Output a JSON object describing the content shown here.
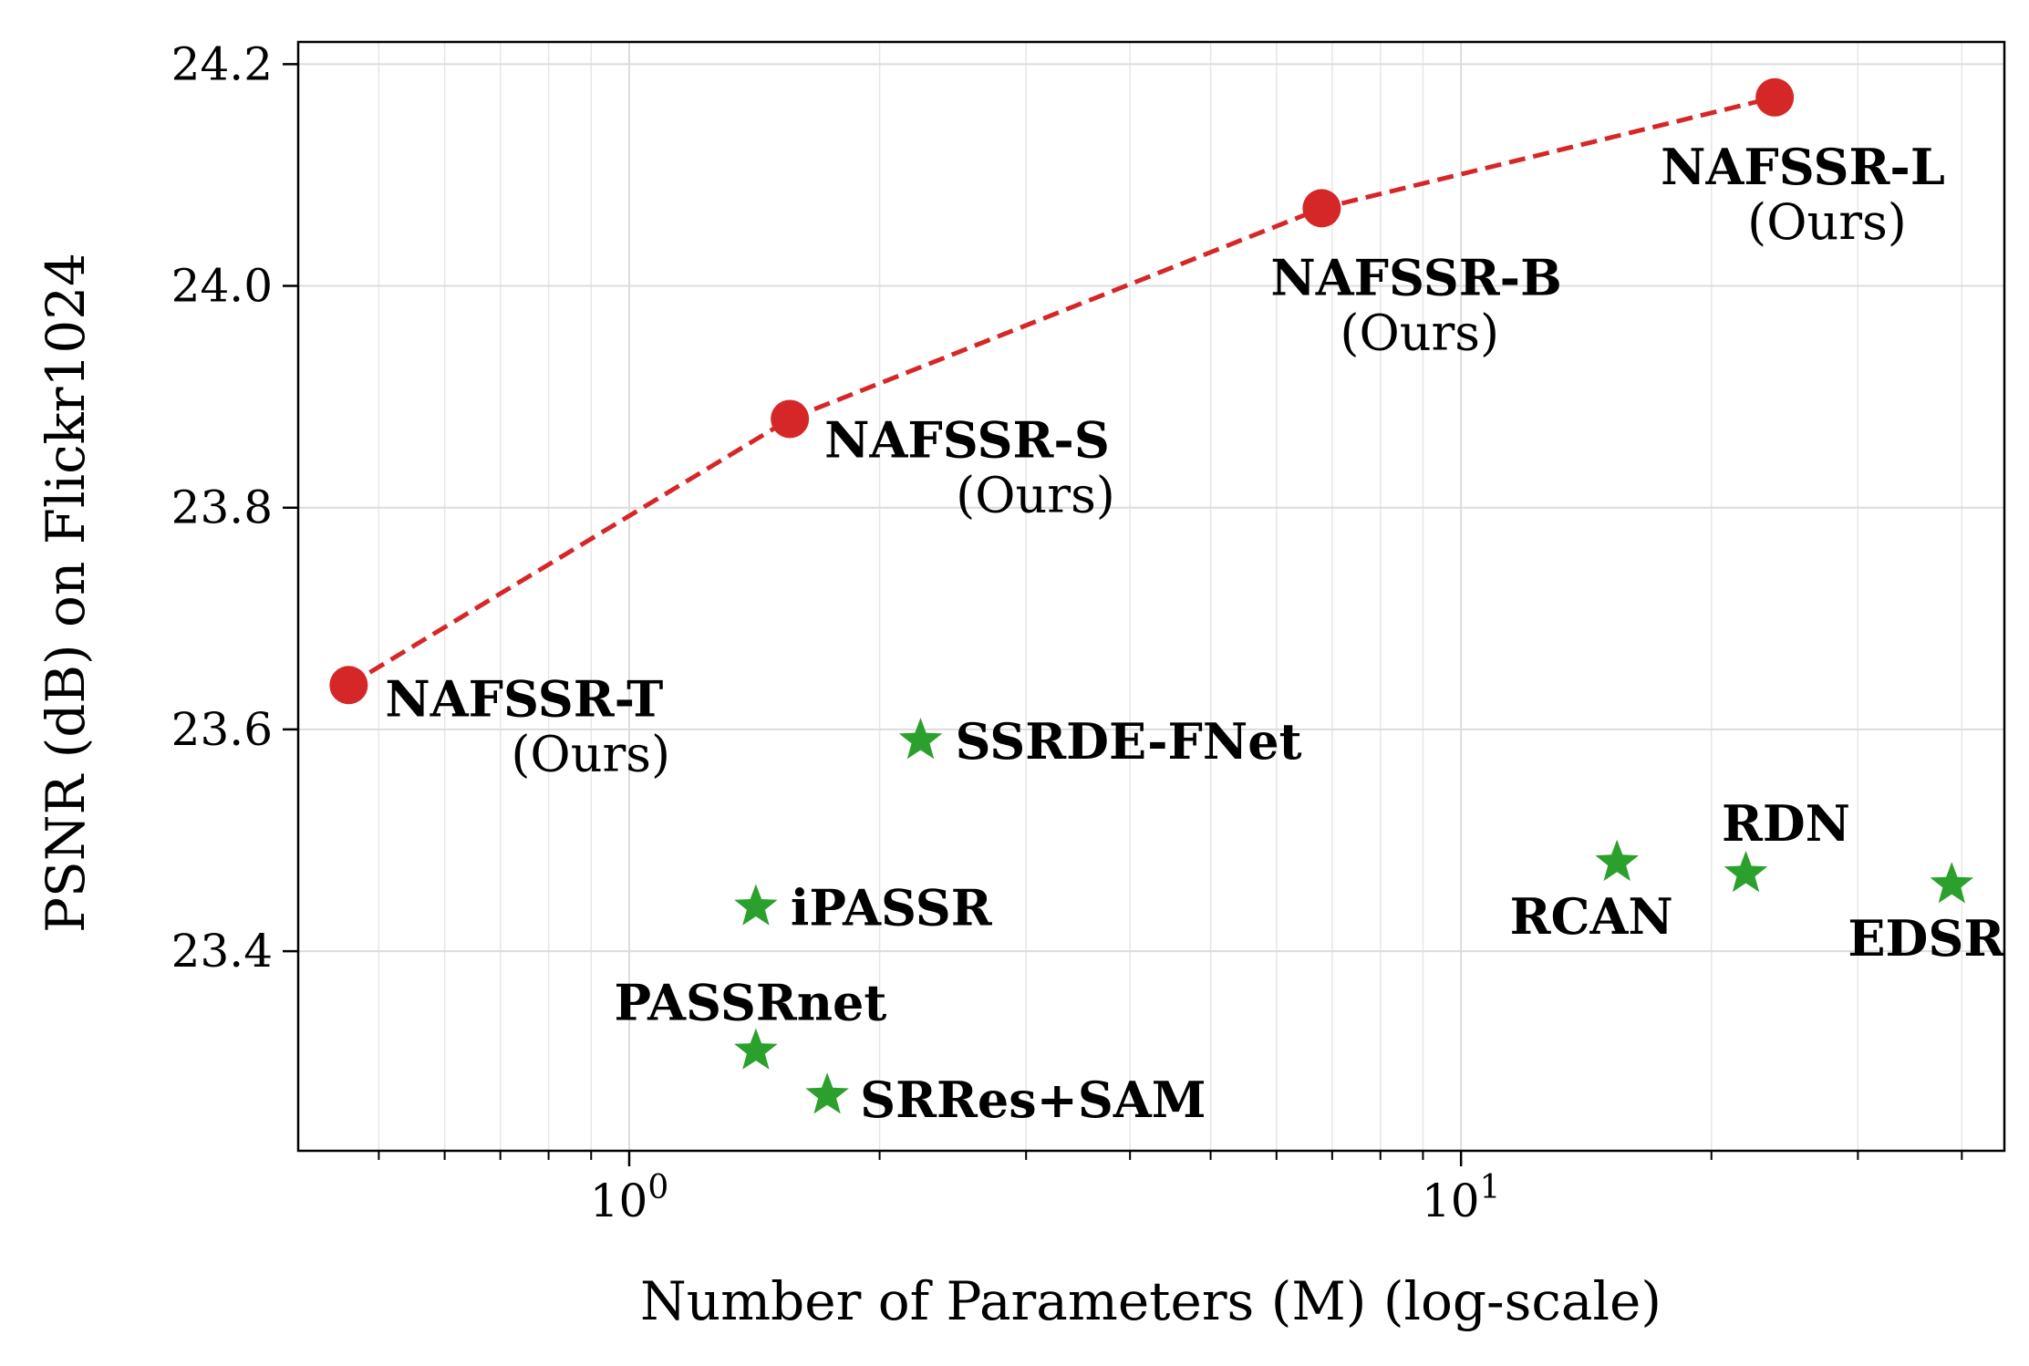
{
  "chart_data": {
    "type": "scatter",
    "xscale": "log",
    "xlabel": "Number of Parameters (M) (log-scale)",
    "ylabel": "PSNR (dB) on Flickr1024",
    "xlim": [
      0.4,
      45
    ],
    "ylim": [
      23.22,
      24.22
    ],
    "yticks": [
      23.4,
      23.6,
      23.8,
      24.0,
      24.2
    ],
    "ytick_labels": [
      "23.4",
      "23.6",
      "23.8",
      "24.0",
      "24.2"
    ],
    "xticks": [
      1,
      10
    ],
    "xtick_labels": [
      {
        "base": "10",
        "exp": "0"
      },
      {
        "base": "10",
        "exp": "1"
      }
    ],
    "grid": true,
    "series": [
      {
        "color": "#d62728",
        "marker": "circle",
        "line": "dashed",
        "points": [
          {
            "x": 0.46,
            "y": 23.64,
            "label": "NAFSSR-T",
            "sublabel": "(Ours)"
          },
          {
            "x": 1.56,
            "y": 23.88,
            "label": "NAFSSR-S",
            "sublabel": "(Ours)"
          },
          {
            "x": 6.8,
            "y": 24.07,
            "label": "NAFSSR-B",
            "sublabel": "(Ours)"
          },
          {
            "x": 23.83,
            "y": 24.17,
            "label": "NAFSSR-L",
            "sublabel": "(Ours)"
          }
        ]
      },
      {
        "color": "#2ca02c",
        "marker": "star",
        "line": "none",
        "points": [
          {
            "x": 2.24,
            "y": 23.59,
            "label": "SSRDE-FNet"
          },
          {
            "x": 1.42,
            "y": 23.44,
            "label": "iPASSR"
          },
          {
            "x": 1.42,
            "y": 23.31,
            "label": "PASSRnet"
          },
          {
            "x": 1.73,
            "y": 23.27,
            "label": "SRRes+SAM"
          },
          {
            "x": 15.4,
            "y": 23.48,
            "label": "RCAN"
          },
          {
            "x": 22.0,
            "y": 23.47,
            "label": "RDN"
          },
          {
            "x": 38.9,
            "y": 23.46,
            "label": "EDSR"
          }
        ]
      }
    ]
  }
}
